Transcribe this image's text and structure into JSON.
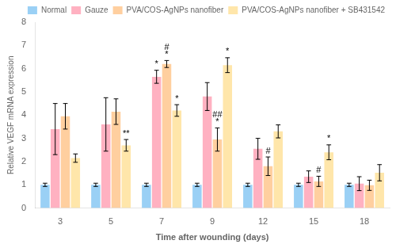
{
  "chart_data": {
    "type": "bar",
    "categories": [
      "3",
      "5",
      "7",
      "9",
      "12",
      "15",
      "18"
    ],
    "series": [
      {
        "name": "Normal",
        "values": [
          1.0,
          1.0,
          1.0,
          1.0,
          1.0,
          1.0,
          1.0
        ],
        "errors": [
          0.07,
          0.07,
          0.07,
          0.07,
          0.07,
          0.07,
          0.07
        ]
      },
      {
        "name": "Gauze",
        "values": [
          3.4,
          3.6,
          5.65,
          4.8,
          2.55,
          1.35,
          1.05
        ],
        "errors": [
          1.1,
          1.15,
          0.28,
          0.6,
          0.45,
          0.25,
          0.3
        ]
      },
      {
        "name": "PVA/COS-AgNPs nanofiber",
        "values": [
          3.95,
          4.15,
          6.2,
          2.95,
          1.8,
          1.15,
          0.98
        ],
        "errors": [
          0.55,
          0.55,
          0.15,
          0.5,
          0.4,
          0.22,
          0.22
        ]
      },
      {
        "name": "PVA/COS-AgNPs nanofiber + SB431542",
        "values": [
          2.15,
          2.7,
          4.2,
          6.15,
          3.3,
          2.4,
          1.52
        ],
        "errors": [
          0.18,
          0.25,
          0.25,
          0.32,
          0.28,
          0.32,
          0.35
        ]
      }
    ],
    "xlabel": "Time after wounding (days)",
    "ylabel": "Relative VEGF mRNA expression",
    "ylim": [
      0,
      8
    ],
    "yticks": [
      0,
      1,
      2,
      3,
      4,
      5,
      6,
      7,
      8
    ],
    "grid": false,
    "legend": "upper right",
    "annotations": [
      {
        "text": "*",
        "category": "7",
        "series": "Gauze"
      },
      {
        "text": "*",
        "category": "7",
        "series": "PVA/COS-AgNPs nanofiber"
      },
      {
        "text": "#",
        "category": "7",
        "series": "PVA/COS-AgNPs nanofiber"
      },
      {
        "text": "*",
        "category": "7",
        "series": "PVA/COS-AgNPs nanofiber + SB431542"
      },
      {
        "text": "**",
        "category": "5",
        "series": "PVA/COS-AgNPs nanofiber + SB431542"
      },
      {
        "text": "*",
        "category": "9",
        "series": "PVA/COS-AgNPs nanofiber + SB431542"
      },
      {
        "text": "*",
        "category": "9",
        "series": "PVA/COS-AgNPs nanofiber"
      },
      {
        "text": "##",
        "category": "9",
        "series": "PVA/COS-AgNPs nanofiber"
      },
      {
        "text": "#",
        "category": "12",
        "series": "PVA/COS-AgNPs nanofiber"
      },
      {
        "text": "*",
        "category": "15",
        "series": "PVA/COS-AgNPs nanofiber + SB431542"
      },
      {
        "text": "#",
        "category": "15",
        "series": "PVA/COS-AgNPs nanofiber"
      }
    ]
  }
}
